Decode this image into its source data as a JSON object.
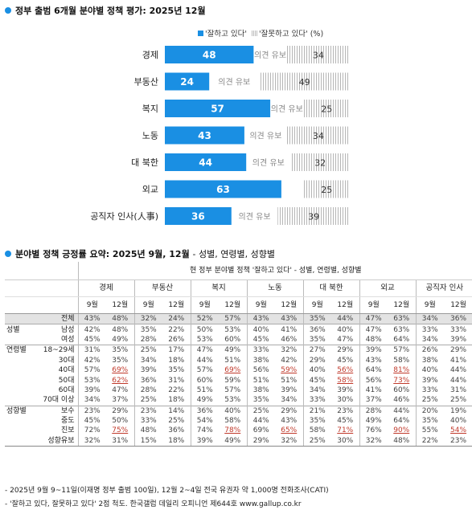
{
  "chart1": {
    "title": "정부 출범 6개월 분야별 정책 평가: 2025년 12월",
    "legend": {
      "positive": "'잘하고 있다'",
      "negative": "'잘못하고 있다'",
      "unit": "(%)"
    },
    "opinion_note": "의견 유보"
  },
  "chart_data": {
    "type": "bar",
    "orientation": "horizontal",
    "stacked": true,
    "title": "정부 출범 6개월 분야별 정책 평가: 2025년 12월",
    "categories": [
      "경제",
      "부동산",
      "복지",
      "노동",
      "대 북한",
      "외교",
      "공직자 인사(人事)"
    ],
    "series": [
      {
        "name": "'잘하고 있다'",
        "values": [
          48,
          24,
          57,
          43,
          44,
          63,
          36
        ],
        "color": "#1a8fe3"
      },
      {
        "name": "'잘못하고 있다'",
        "values": [
          34,
          49,
          25,
          34,
          32,
          25,
          39
        ],
        "color": "hatched-gray"
      }
    ],
    "unit": "%",
    "colors": {
      "positive": "#1a8fe3",
      "negative_hatch": "#b8b8b8"
    }
  },
  "table": {
    "title": "분야별 정책 긍정률 요약: 2025년 9월, 12월",
    "subtitle": "- 성별, 연령별, 성향별",
    "super_header": "현 정부 분야별 정책 '잘하고 있다' - 성별, 연령별, 성향별",
    "areas": [
      "경제",
      "부동산",
      "복지",
      "노동",
      "대 북한",
      "외교",
      "공직자 인사"
    ],
    "month_labels": [
      "9월",
      "12월"
    ],
    "rows": [
      {
        "g": "",
        "s": "전체",
        "v": [
          "43%",
          "48%",
          "32%",
          "24%",
          "52%",
          "57%",
          "43%",
          "43%",
          "35%",
          "44%",
          "47%",
          "63%",
          "34%",
          "36%"
        ],
        "hl": [],
        "total": true,
        "sec": false
      },
      {
        "g": "성별",
        "s": "남성",
        "v": [
          "42%",
          "48%",
          "35%",
          "22%",
          "50%",
          "53%",
          "40%",
          "41%",
          "36%",
          "40%",
          "47%",
          "63%",
          "33%",
          "33%"
        ],
        "hl": [],
        "sec": true
      },
      {
        "g": "",
        "s": "여성",
        "v": [
          "45%",
          "49%",
          "28%",
          "26%",
          "53%",
          "60%",
          "45%",
          "46%",
          "35%",
          "47%",
          "48%",
          "64%",
          "34%",
          "39%"
        ],
        "hl": [],
        "sec": false
      },
      {
        "g": "연령별",
        "s": "18~29세",
        "v": [
          "31%",
          "35%",
          "25%",
          "17%",
          "47%",
          "49%",
          "33%",
          "32%",
          "27%",
          "29%",
          "39%",
          "57%",
          "26%",
          "29%"
        ],
        "hl": [],
        "sec": true
      },
      {
        "g": "",
        "s": "30대",
        "v": [
          "42%",
          "35%",
          "34%",
          "18%",
          "44%",
          "51%",
          "38%",
          "42%",
          "29%",
          "45%",
          "43%",
          "58%",
          "38%",
          "41%"
        ],
        "hl": [],
        "sec": false
      },
      {
        "g": "",
        "s": "40대",
        "v": [
          "57%",
          "69%",
          "39%",
          "35%",
          "57%",
          "69%",
          "56%",
          "59%",
          "40%",
          "56%",
          "64%",
          "81%",
          "40%",
          "44%"
        ],
        "hl": [
          1,
          5,
          7,
          9,
          11
        ],
        "sec": false
      },
      {
        "g": "",
        "s": "50대",
        "v": [
          "53%",
          "62%",
          "36%",
          "31%",
          "60%",
          "59%",
          "51%",
          "51%",
          "45%",
          "58%",
          "56%",
          "73%",
          "39%",
          "44%"
        ],
        "hl": [
          1,
          9,
          11
        ],
        "sec": false
      },
      {
        "g": "",
        "s": "60대",
        "v": [
          "39%",
          "47%",
          "28%",
          "22%",
          "51%",
          "57%",
          "38%",
          "39%",
          "34%",
          "39%",
          "41%",
          "60%",
          "33%",
          "31%"
        ],
        "hl": [],
        "sec": false
      },
      {
        "g": "",
        "s": "70대 이상",
        "v": [
          "34%",
          "37%",
          "25%",
          "18%",
          "49%",
          "53%",
          "35%",
          "34%",
          "33%",
          "30%",
          "37%",
          "46%",
          "25%",
          "25%"
        ],
        "hl": [],
        "sec": false
      },
      {
        "g": "성향별",
        "s": "보수",
        "v": [
          "23%",
          "29%",
          "23%",
          "14%",
          "36%",
          "40%",
          "25%",
          "29%",
          "21%",
          "23%",
          "28%",
          "44%",
          "20%",
          "19%"
        ],
        "hl": [],
        "sec": true
      },
      {
        "g": "",
        "s": "중도",
        "v": [
          "45%",
          "50%",
          "33%",
          "25%",
          "54%",
          "58%",
          "44%",
          "43%",
          "35%",
          "45%",
          "49%",
          "64%",
          "35%",
          "40%"
        ],
        "hl": [],
        "sec": false
      },
      {
        "g": "",
        "s": "진보",
        "v": [
          "72%",
          "75%",
          "48%",
          "36%",
          "74%",
          "78%",
          "69%",
          "65%",
          "58%",
          "71%",
          "76%",
          "90%",
          "55%",
          "54%"
        ],
        "hl": [
          1,
          5,
          7,
          9,
          11,
          13
        ],
        "sec": false
      },
      {
        "g": "",
        "s": "성향유보",
        "v": [
          "32%",
          "31%",
          "15%",
          "18%",
          "39%",
          "49%",
          "29%",
          "32%",
          "25%",
          "30%",
          "32%",
          "48%",
          "22%",
          "23%"
        ],
        "hl": [],
        "sec": false,
        "last": true
      }
    ]
  },
  "notes": [
    "- 2025년 9월 9~11일(이재명 정부 출범 100일), 12월 2~4일 전국 유권자 약 1,000명 전화조사(CATI)",
    "- '잘하고 있다, 잘못하고 있다' 2점 척도. 한국갤럽 데일리 오피니언 제644호 www.gallup.co.kr"
  ]
}
